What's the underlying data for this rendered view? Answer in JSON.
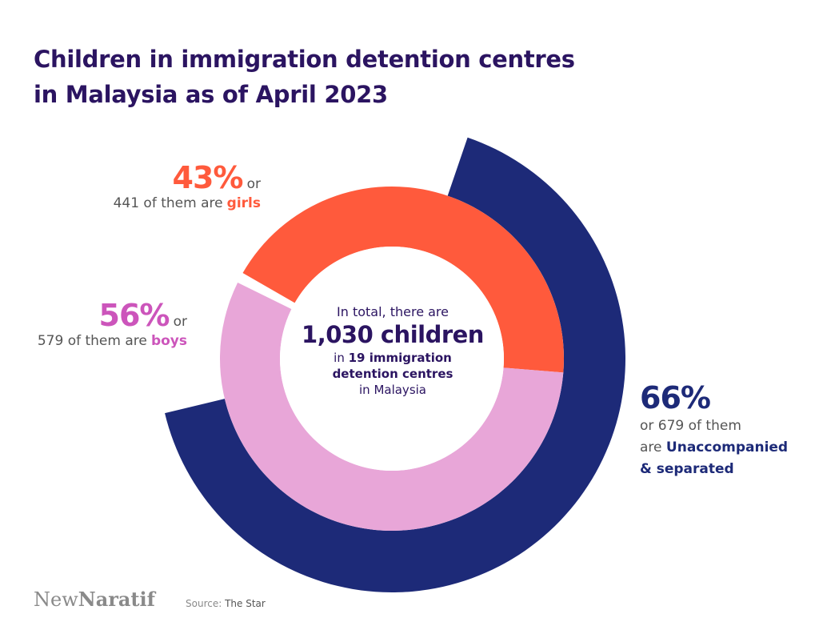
{
  "title_lines": [
    "Children in immigration detention centres",
    "in Malaysia as of April 2023"
  ],
  "colors": {
    "title": "#2b1461",
    "girls": "#ff5a3c",
    "boys": "#e8a6d8",
    "boys_text": "#cc55bb",
    "unaccompanied": "#1d2a78",
    "remainder": "#ffffff"
  },
  "chart_data": {
    "type": "pie",
    "total": 1030,
    "inner_ring": [
      {
        "name": "girls",
        "percent": 43,
        "count": 441
      },
      {
        "name": "boys",
        "percent": 56,
        "count": 579
      }
    ],
    "outer_ring": [
      {
        "name": "Unaccompanied & separated",
        "percent": 66,
        "count": 679
      }
    ]
  },
  "labels": {
    "girls": {
      "pct": "43%",
      "or": "or",
      "pre": "441 of them are",
      "word": "girls"
    },
    "boys": {
      "pct": "56%",
      "or": "or",
      "pre": "579 of them are",
      "word": "boys"
    },
    "unaccompanied": {
      "pct": "66%",
      "line1": "or 679 of them",
      "line2_pre": "are",
      "line2_bold": "Unaccompanied",
      "line3": "& separated"
    },
    "center": {
      "line1": "In total, there are",
      "total": "1,030 children",
      "line3_pre": "in",
      "line3_bold": "19 immigration",
      "line4": "detention centres",
      "line5": "in Malaysia"
    }
  },
  "footer": {
    "brand_light": "New",
    "brand_bold": "Naratif",
    "source_label": "Source:",
    "source_value": "The Star"
  }
}
